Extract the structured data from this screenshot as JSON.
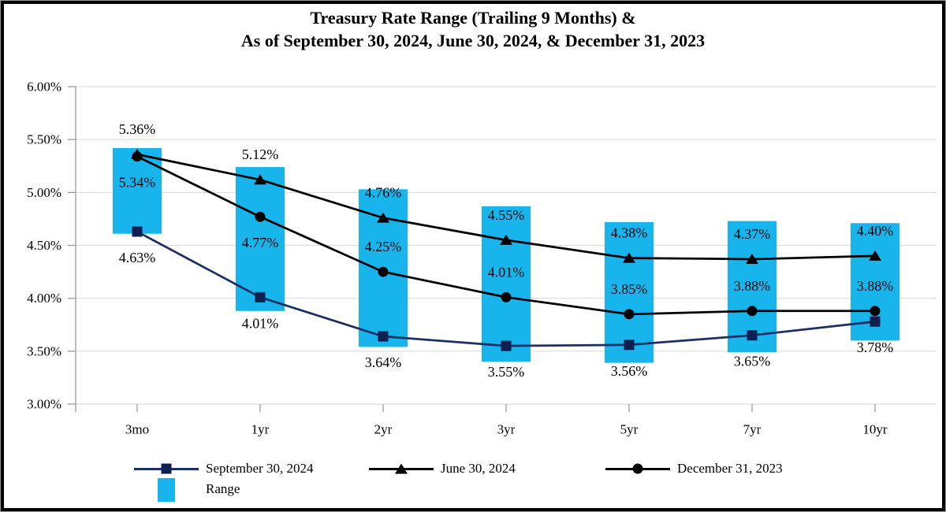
{
  "title": {
    "line1": "Treasury Rate Range (Trailing 9 Months) &",
    "line2": "As of September 30, 2024, June 30, 2024, & December 31, 2023"
  },
  "chart_data": {
    "type": "combo_bar_line",
    "title": "Treasury Rate Range (Trailing 9 Months) & As of September 30, 2024, June 30, 2024, & December 31, 2023",
    "categories": [
      "3mo",
      "1yr",
      "2yr",
      "3yr",
      "5yr",
      "7yr",
      "10yr"
    ],
    "series": [
      {
        "name": "June 30, 2024",
        "marker": "triangle",
        "line_color": "#000000",
        "marker_color": "#000000",
        "values": [
          5.36,
          5.12,
          4.76,
          4.55,
          4.38,
          4.37,
          4.4
        ],
        "label_position": "above",
        "label_position_overrides": {}
      },
      {
        "name": "December 31, 2023",
        "marker": "circle",
        "line_color": "#000000",
        "marker_color": "#000000",
        "values": [
          5.34,
          4.77,
          4.25,
          4.01,
          3.85,
          3.88,
          3.88
        ],
        "label_position": "above",
        "label_position_overrides": {
          "0": "below",
          "1": "below"
        }
      },
      {
        "name": "September 30, 2024",
        "marker": "square",
        "line_color": "#1b2f64",
        "marker_color": "#0e2050",
        "values": [
          4.63,
          4.01,
          3.64,
          3.55,
          3.56,
          3.65,
          3.78
        ],
        "label_position": "below",
        "label_position_overrides": {}
      }
    ],
    "range": {
      "name": "Range",
      "color": "#18b4ec",
      "low": [
        4.61,
        3.88,
        3.54,
        3.4,
        3.39,
        3.49,
        3.6
      ],
      "high": [
        5.42,
        5.24,
        5.03,
        4.87,
        4.72,
        4.73,
        4.71
      ]
    },
    "y_axis": {
      "min": 3.0,
      "max": 6.0,
      "step": 0.5,
      "tick_labels": [
        "6.00%",
        "5.50%",
        "5.00%",
        "4.50%",
        "4.00%",
        "3.50%",
        "3.00%"
      ]
    },
    "data_label_format": "0.00%",
    "grid": true,
    "legend_position": "bottom",
    "colors": {
      "gridline": "#d9d9d9",
      "axis": "#9a9a9a",
      "baseline": "#cfcfcf",
      "text": "#000000"
    }
  },
  "legend": {
    "entry_sep30": "September 30, 2024",
    "entry_jun30": "June 30, 2024",
    "entry_dec31": "December 31, 2023",
    "entry_range": "Range"
  }
}
